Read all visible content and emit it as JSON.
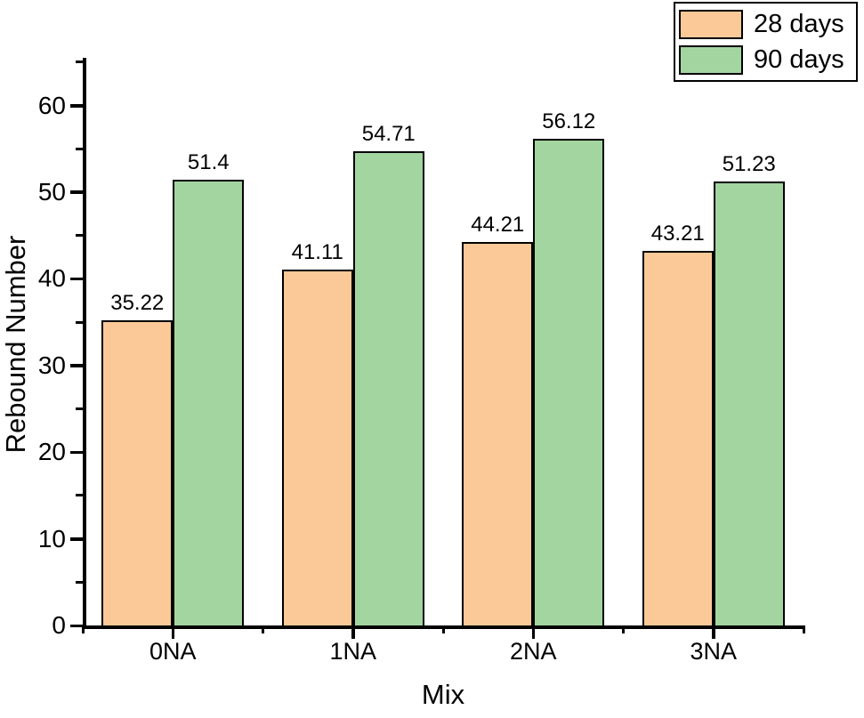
{
  "chart_data": {
    "type": "bar",
    "title": "",
    "xlabel": "Mix",
    "ylabel": "Rebound Number",
    "categories": [
      "0NA",
      "1NA",
      "2NA",
      "3NA"
    ],
    "series": [
      {
        "name": "28 days",
        "color": "#FBC998",
        "values": [
          35.22,
          41.11,
          44.21,
          43.21
        ],
        "labels": [
          "35.22",
          "41.11",
          "44.21",
          "43.21"
        ]
      },
      {
        "name": "90 days",
        "color": "#A3D5A0",
        "values": [
          51.4,
          54.71,
          56.12,
          51.23
        ],
        "labels": [
          "51.4",
          "54.71",
          "56.12",
          "51.23"
        ]
      }
    ],
    "ylim": [
      0,
      65.5
    ],
    "y_major_ticks": [
      0,
      10,
      20,
      30,
      40,
      50,
      60
    ],
    "y_minor_ticks": [
      5,
      15,
      25,
      35,
      45,
      55,
      65
    ],
    "grid": false,
    "legend_position": "top-right",
    "bar_edge_color": "#000000",
    "axis_color": "#000000"
  }
}
